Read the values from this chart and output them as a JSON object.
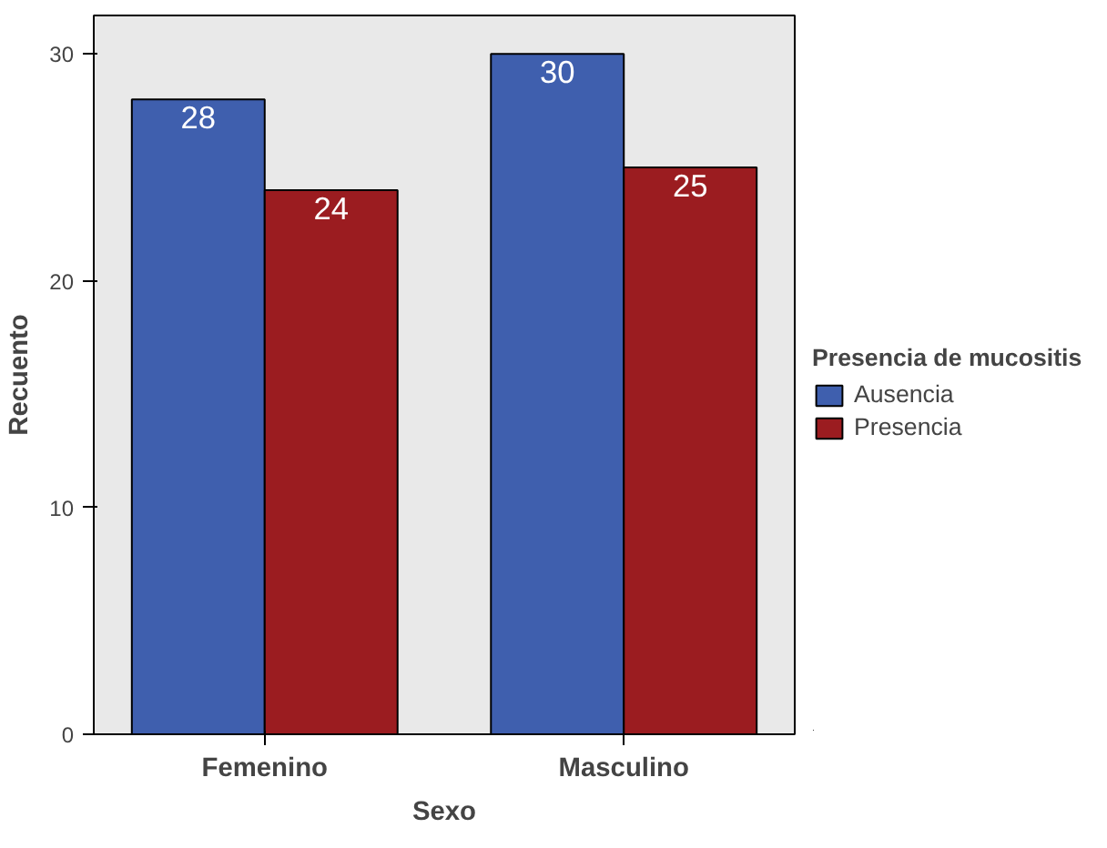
{
  "chart_data": {
    "type": "bar",
    "categories": [
      "Femenino",
      "Masculino"
    ],
    "xlabel": "Sexo",
    "ylabel": "Recuento",
    "legend_title": "Presencia de mucositis",
    "legend": "right",
    "series": [
      {
        "name": "Ausencia",
        "color": "#3f5fae",
        "values": [
          28,
          30
        ]
      },
      {
        "name": "Presencia",
        "color": "#9b1c20",
        "values": [
          24,
          25
        ]
      }
    ],
    "ylim": [
      0,
      31.7
    ],
    "yticks": [
      0,
      10,
      20,
      30
    ],
    "grid": false,
    "data_labels": true
  }
}
